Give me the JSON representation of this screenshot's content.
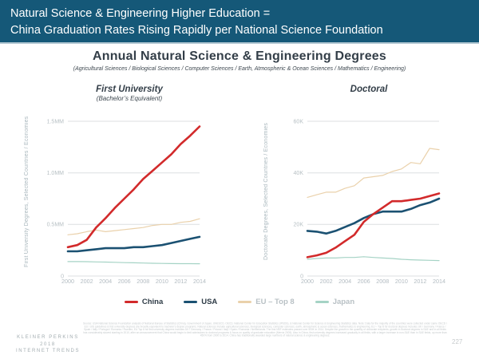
{
  "banner": {
    "line1": "Natural Science & Engineering Higher Education =",
    "line2": "China Graduation Rates Rising Rapidly per National Science Foundation"
  },
  "title": "Annual Natural Science & Engineering Degrees",
  "subtitle": "(Agricultural Sciences / Biological Sciences / Computer Sciences / Earth, Atmospheric & Ocean Sciences / Mathematics / Engineering)",
  "colors": {
    "banner_bg": "#155878",
    "gridline": "#dcdfe1",
    "china": "#d22a2b",
    "usa": "#1b5172",
    "eu_top8": "#ead1ab",
    "japan": "#a5d3c5",
    "tick_label": "#b6bfc3",
    "axis_title": "#a9b7bd"
  },
  "chart_data": [
    {
      "type": "line",
      "title": "First University",
      "subtitle": "(Bachelor’s Equivalent)",
      "ylabel": "First University Degrees, Selected Countries / Economies",
      "unit": "MM degrees per year",
      "x": [
        2000,
        2001,
        2002,
        2003,
        2004,
        2005,
        2006,
        2007,
        2008,
        2009,
        2010,
        2011,
        2012,
        2013,
        2014
      ],
      "x_ticks": [
        2000,
        2002,
        2004,
        2006,
        2008,
        2010,
        2012,
        2014
      ],
      "ylim": [
        0,
        1.5
      ],
      "y_ticks": [
        {
          "value": 0,
          "label": "0"
        },
        {
          "value": 0.5,
          "label": "0.5MM"
        },
        {
          "value": 1.0,
          "label": "1.0MM"
        },
        {
          "value": 1.5,
          "label": "1.5MM"
        }
      ],
      "grid": "horizontal-only",
      "series": [
        {
          "name": "EU – Top 8",
          "color": "#ead1ab",
          "line_width": 1.2,
          "values": [
            0.4,
            0.41,
            0.43,
            0.445,
            0.43,
            0.44,
            0.45,
            0.46,
            0.47,
            0.49,
            0.5,
            0.5,
            0.52,
            0.53,
            0.555
          ]
        },
        {
          "name": "Japan",
          "color": "#a5d3c5",
          "line_width": 1.2,
          "values": [
            0.14,
            0.14,
            0.139,
            0.137,
            0.135,
            0.133,
            0.13,
            0.128,
            0.126,
            0.124,
            0.122,
            0.121,
            0.12,
            0.12,
            0.119
          ]
        },
        {
          "name": "USA",
          "color": "#1b5172",
          "line_width": 2.6,
          "values": [
            0.24,
            0.24,
            0.25,
            0.26,
            0.27,
            0.27,
            0.27,
            0.28,
            0.28,
            0.29,
            0.3,
            0.32,
            0.34,
            0.36,
            0.38
          ]
        },
        {
          "name": "China",
          "color": "#d22a2b",
          "line_width": 2.6,
          "values": [
            0.28,
            0.3,
            0.35,
            0.47,
            0.56,
            0.66,
            0.75,
            0.84,
            0.94,
            1.02,
            1.1,
            1.18,
            1.28,
            1.36,
            1.45
          ]
        }
      ]
    },
    {
      "type": "line",
      "title": "Doctoral",
      "subtitle": "",
      "ylabel": "Doctorate Degrees, Selected Countries / Economies",
      "unit": "K degrees per year",
      "x": [
        2000,
        2001,
        2002,
        2003,
        2004,
        2005,
        2006,
        2007,
        2008,
        2009,
        2010,
        2011,
        2012,
        2013,
        2014
      ],
      "x_ticks": [
        2000,
        2002,
        2004,
        2006,
        2008,
        2010,
        2012,
        2014
      ],
      "ylim": [
        0,
        60
      ],
      "y_ticks": [
        {
          "value": 0,
          "label": "0"
        },
        {
          "value": 20,
          "label": "20K"
        },
        {
          "value": 40,
          "label": "40K"
        },
        {
          "value": 60,
          "label": "60K"
        }
      ],
      "grid": "horizontal-only",
      "series": [
        {
          "name": "EU – Top 8",
          "color": "#ead1ab",
          "line_width": 1.2,
          "values": [
            30.5,
            31.5,
            32.5,
            32.5,
            34,
            35,
            38,
            38.5,
            39,
            40.5,
            41.5,
            44,
            43.5,
            49.5,
            49
          ]
        },
        {
          "name": "Japan",
          "color": "#a5d3c5",
          "line_width": 1.2,
          "values": [
            6.5,
            6.8,
            7,
            7,
            7.2,
            7.2,
            7.5,
            7.2,
            7,
            6.8,
            6.5,
            6.3,
            6.2,
            6.1,
            6
          ]
        },
        {
          "name": "USA",
          "color": "#1b5172",
          "line_width": 2.6,
          "values": [
            17.5,
            17.2,
            16.5,
            17.5,
            19,
            20.5,
            22.5,
            24,
            25,
            25,
            25,
            26,
            27.5,
            28.5,
            30
          ]
        },
        {
          "name": "China",
          "color": "#d22a2b",
          "line_width": 2.6,
          "values": [
            7.3,
            8,
            9,
            11,
            13.5,
            16,
            21,
            24,
            26.5,
            29,
            29,
            29.5,
            30,
            31,
            32
          ]
        }
      ]
    }
  ],
  "legend": {
    "items": [
      {
        "label": "China",
        "color": "#d22a2b",
        "label_color": "#2e3b46"
      },
      {
        "label": "USA",
        "color": "#1b5172",
        "label_color": "#2e3b46"
      },
      {
        "label": "EU – Top 8",
        "color": "#ead1ab",
        "label_color": "#b9c1c5"
      },
      {
        "label": "Japan",
        "color": "#a5d3c5",
        "label_color": "#b9c1c5"
      }
    ]
  },
  "footer": {
    "brand_lines": [
      "KLEINER PERKINS",
      "2018",
      "INTERNET TRENDS"
    ],
    "source_text": "Source: USA National Science Foundation analysis of National Bureau of Statistics (China), Government of Japan, UNESCO, OECD, National Center for Education Statistics (IPEDS), & National Center for Science & Engineering Statistics data. Note: Data for the majority of the countries were collected under same OECD / EU / UIS guidelines & first university degrees are broadly equivalent to bachelor's degree programs. Natural sciences include agricultural sciences, biological sciences, computer sciences, earth, atmospheric & ocean sciences, mathematics & engineering. EU – Top 8 for doctoral degrees includes UK / Germany / France / Spain / Italy / Portugal / Romania / Sweden; EU Top 8 for first university degrees includes UK / Germany / France / Poland / Italy / Spain / Romania / Netherlands. The first NSF estimates passed over 500K in 2014. Despite the growth in the quantity of doctorate recipients, growth in doctoral degrees in S&E and in all fields has considerably slowed starting in 2010, after an announcement that China would begin to limit admissions to doctoral programs & focus on quality of graduate education (Mervis 2005). Also in China, first university degrees increased gradually in all fields, with a larger increase in non-S&E than in S&E fields, up more than 450% from 2000 to 2014. China has traditionally awarded large numbers of natural science & engineering degrees.",
    "page_number": "227"
  }
}
